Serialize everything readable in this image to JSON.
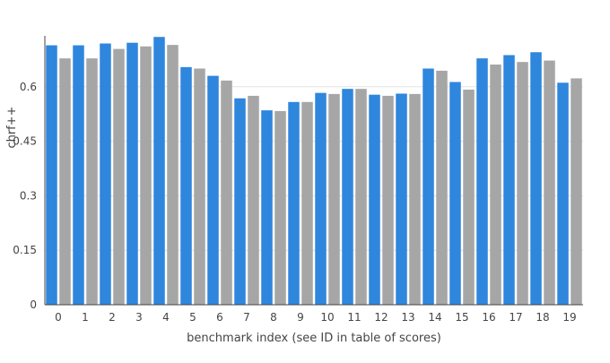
{
  "chart_data": {
    "type": "bar",
    "title": "",
    "xlabel": "benchmark index (see ID in table of scores)",
    "ylabel": "chrf++",
    "ylim": [
      0,
      0.74
    ],
    "yticks": [
      0,
      0.15,
      0.3,
      0.45,
      0.6
    ],
    "ytick_labels": [
      "0",
      "0.15",
      "0.3",
      "0.45",
      "0.6"
    ],
    "categories": [
      "0",
      "1",
      "2",
      "3",
      "4",
      "5",
      "6",
      "7",
      "8",
      "9",
      "10",
      "11",
      "12",
      "13",
      "14",
      "15",
      "16",
      "17",
      "18",
      "19"
    ],
    "grid": true,
    "legend": "none",
    "series": [
      {
        "color": "#2f86dd",
        "values": [
          0.714,
          0.714,
          0.719,
          0.721,
          0.737,
          0.654,
          0.63,
          0.568,
          0.535,
          0.558,
          0.583,
          0.594,
          0.578,
          0.581,
          0.65,
          0.613,
          0.678,
          0.687,
          0.695,
          0.611
        ]
      },
      {
        "color": "#a6a6a6",
        "values": [
          0.678,
          0.678,
          0.704,
          0.711,
          0.715,
          0.65,
          0.617,
          0.575,
          0.533,
          0.558,
          0.58,
          0.594,
          0.575,
          0.58,
          0.644,
          0.592,
          0.661,
          0.668,
          0.672,
          0.623
        ]
      }
    ]
  }
}
